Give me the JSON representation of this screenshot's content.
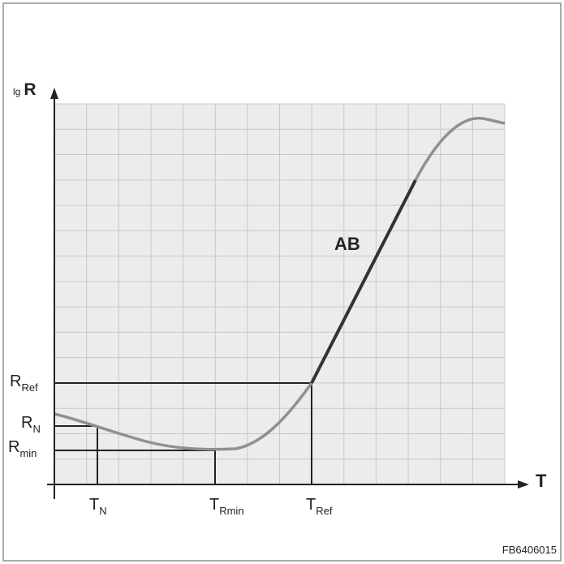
{
  "axes": {
    "y_prefix": "lg",
    "y_label": "R",
    "x_label": "T"
  },
  "curve_label": "AB",
  "y_markers": [
    {
      "main": "R",
      "sub": "Ref"
    },
    {
      "main": "R",
      "sub": "N"
    },
    {
      "main": "R",
      "sub": "min"
    }
  ],
  "x_markers": [
    {
      "main": "T",
      "sub": "N"
    },
    {
      "main": "T",
      "sub": "Rmin"
    },
    {
      "main": "T",
      "sub": "Ref"
    }
  ],
  "figure_id": "FB6406015"
}
